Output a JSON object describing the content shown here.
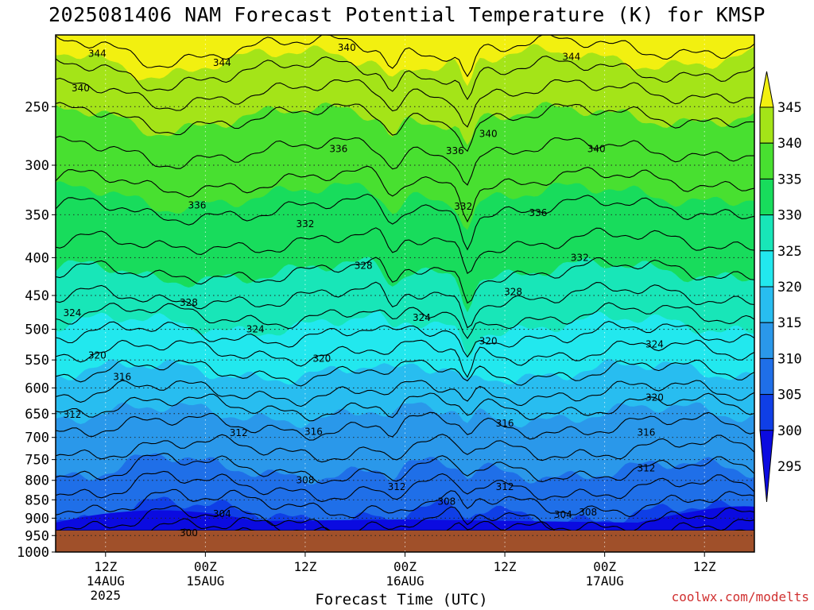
{
  "chart_data": {
    "type": "contour",
    "title": "2025081406 NAM Forecast Potential Temperature (K) for KMSP",
    "xlabel": "Forecast Time (UTC)",
    "ylabel": "",
    "credit": "coolwx.com/modelts",
    "y_ticks": [
      250,
      300,
      350,
      400,
      450,
      500,
      550,
      600,
      650,
      700,
      750,
      800,
      850,
      900,
      950,
      1000
    ],
    "y_scale": "log-pressure (inverted)",
    "ylim": [
      200,
      1000
    ],
    "x_ticks": [
      {
        "hour": 6,
        "label": "12Z",
        "line2": "14AUG",
        "line3": "2025"
      },
      {
        "hour": 18,
        "label": "00Z",
        "line2": "15AUG",
        "line3": ""
      },
      {
        "hour": 30,
        "label": "12Z",
        "line2": "",
        "line3": ""
      },
      {
        "hour": 42,
        "label": "00Z",
        "line2": "16AUG",
        "line3": ""
      },
      {
        "hour": 54,
        "label": "12Z",
        "line2": "",
        "line3": ""
      },
      {
        "hour": 66,
        "label": "00Z",
        "line2": "17AUG",
        "line3": ""
      },
      {
        "hour": 78,
        "label": "12Z",
        "line2": "",
        "line3": ""
      }
    ],
    "xlim": [
      0,
      84
    ],
    "colorbar": {
      "labels": [
        "295",
        "300",
        "305",
        "310",
        "315",
        "320",
        "325",
        "330",
        "335",
        "340",
        "345"
      ],
      "colors": [
        "#0b0be0",
        "#0f3fe6",
        "#1f6fe8",
        "#2a98ea",
        "#28bdf0",
        "#22e8ee",
        "#18e6b8",
        "#18dc5c",
        "#48e030",
        "#a4e418",
        "#f2f010"
      ]
    },
    "contour_labels": [
      {
        "text": "344",
        "hour": 5,
        "p": 212
      },
      {
        "text": "344",
        "hour": 20,
        "p": 218
      },
      {
        "text": "340",
        "hour": 35,
        "p": 208
      },
      {
        "text": "344",
        "hour": 62,
        "p": 214
      },
      {
        "text": "340",
        "hour": 3,
        "p": 236
      },
      {
        "text": "336",
        "hour": 34,
        "p": 285
      },
      {
        "text": "336",
        "hour": 48,
        "p": 287
      },
      {
        "text": "340",
        "hour": 52,
        "p": 272
      },
      {
        "text": "340",
        "hour": 65,
        "p": 285
      },
      {
        "text": "336",
        "hour": 17,
        "p": 340
      },
      {
        "text": "332",
        "hour": 30,
        "p": 360
      },
      {
        "text": "332",
        "hour": 49,
        "p": 341
      },
      {
        "text": "336",
        "hour": 58,
        "p": 348
      },
      {
        "text": "332",
        "hour": 63,
        "p": 400
      },
      {
        "text": "328",
        "hour": 37,
        "p": 410
      },
      {
        "text": "328",
        "hour": 55,
        "p": 445
      },
      {
        "text": "328",
        "hour": 16,
        "p": 460
      },
      {
        "text": "324",
        "hour": 2,
        "p": 475
      },
      {
        "text": "324",
        "hour": 44,
        "p": 482
      },
      {
        "text": "324",
        "hour": 24,
        "p": 500
      },
      {
        "text": "320",
        "hour": 52,
        "p": 519
      },
      {
        "text": "324",
        "hour": 72,
        "p": 524
      },
      {
        "text": "320",
        "hour": 5,
        "p": 542
      },
      {
        "text": "320",
        "hour": 32,
        "p": 548
      },
      {
        "text": "316",
        "hour": 8,
        "p": 580
      },
      {
        "text": "320",
        "hour": 72,
        "p": 618
      },
      {
        "text": "312",
        "hour": 2,
        "p": 652
      },
      {
        "text": "316",
        "hour": 54,
        "p": 670
      },
      {
        "text": "312",
        "hour": 22,
        "p": 690
      },
      {
        "text": "316",
        "hour": 31,
        "p": 688
      },
      {
        "text": "316",
        "hour": 71,
        "p": 689
      },
      {
        "text": "312",
        "hour": 71,
        "p": 770
      },
      {
        "text": "308",
        "hour": 30,
        "p": 800
      },
      {
        "text": "312",
        "hour": 41,
        "p": 817
      },
      {
        "text": "312",
        "hour": 54,
        "p": 817
      },
      {
        "text": "308",
        "hour": 47,
        "p": 855
      },
      {
        "text": "304",
        "hour": 20,
        "p": 888
      },
      {
        "text": "304",
        "hour": 61,
        "p": 890
      },
      {
        "text": "308",
        "hour": 64,
        "p": 884
      },
      {
        "text": "300",
        "hour": 16,
        "p": 942
      }
    ]
  }
}
